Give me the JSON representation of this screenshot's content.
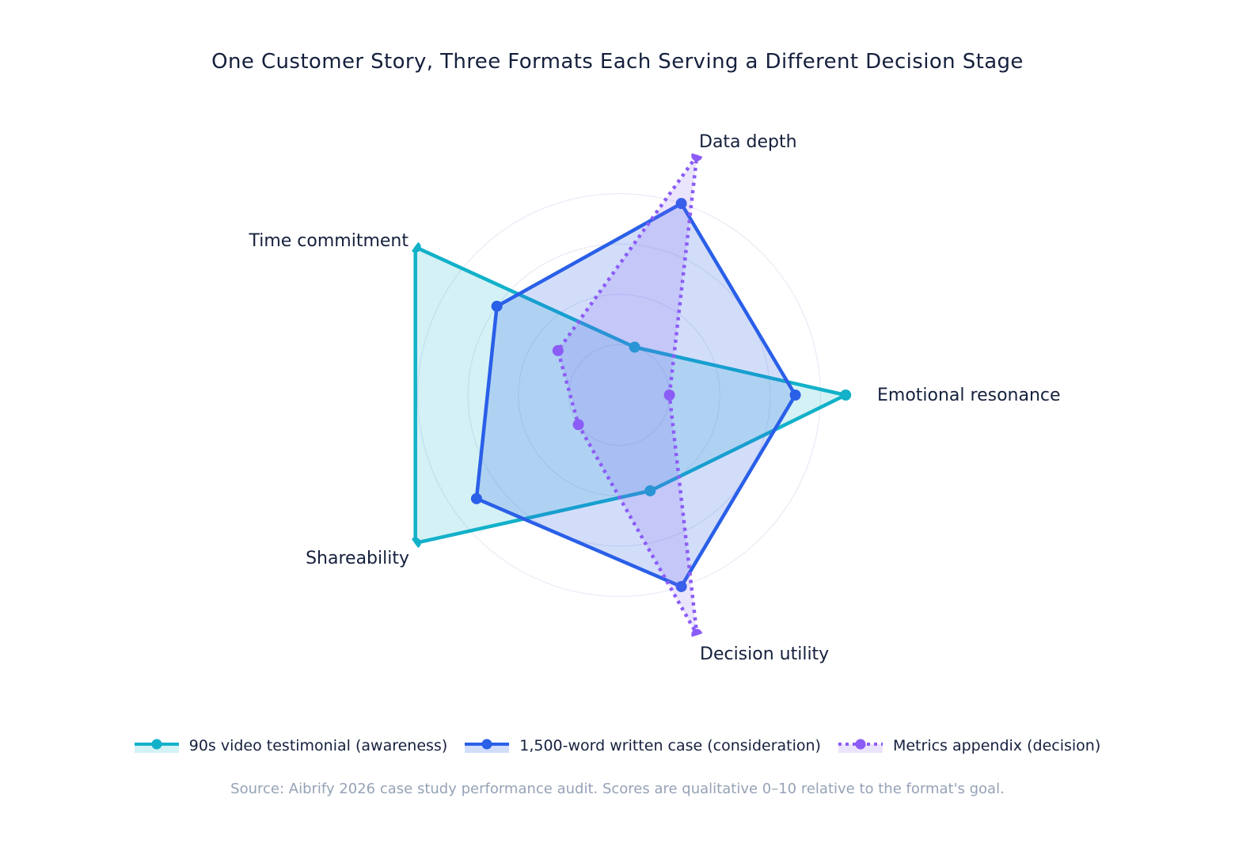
{
  "title": "One Customer Story, Three Formats Each Serving a Different Decision Stage",
  "source_note": "Source: Aibrify 2026 case study performance audit. Scores are qualitative 0–10 relative to the format's goal.",
  "chart_data": {
    "type": "radar",
    "axes": [
      "Emotional resonance",
      "Data depth",
      "Time commitment",
      "Shareability",
      "Decision utility"
    ],
    "rmin": 0,
    "rmax": 10,
    "radial_gridlines": [
      2,
      4,
      6,
      8
    ],
    "grid": true,
    "angle_start_deg": 0,
    "angle_direction": "counterclockwise",
    "legend_position": "bottom",
    "gridline_color": "#e7ebf5",
    "radial_axis_line_color": "#ffffff",
    "radial_axis_line_end_value": 8,
    "text_color": "#15203d",
    "source_color": "#95a2b6",
    "series": [
      {
        "name": "90s video testimonial (awareness)",
        "color": "#12b1c9",
        "fill": "rgba(18,177,201,0.18)",
        "line_style": "solid",
        "values": [
          9,
          2,
          10,
          10,
          4
        ]
      },
      {
        "name": "1,500-word written case (consideration)",
        "color": "#2a5fe8",
        "fill": "rgba(42,95,232,0.21)",
        "line_style": "solid",
        "values": [
          7,
          8,
          6,
          7,
          8
        ]
      },
      {
        "name": "Metrics appendix (decision)",
        "color": "#8b5cf6",
        "fill": "rgba(139,92,246,0.17)",
        "line_style": "dotted",
        "values": [
          2,
          10,
          3,
          2,
          10
        ]
      }
    ]
  }
}
